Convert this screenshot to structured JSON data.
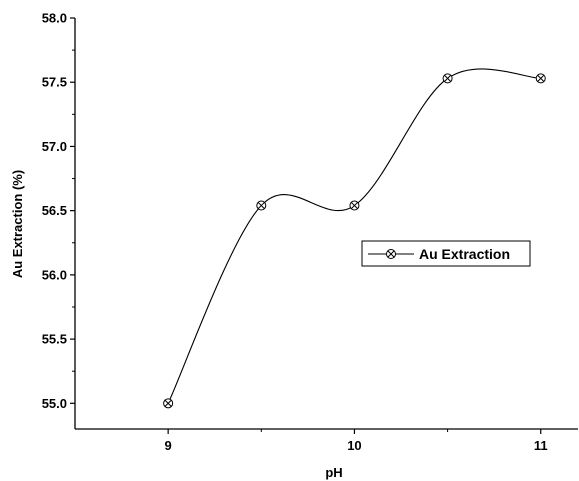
{
  "chart_data": {
    "type": "line",
    "xlabel": "pH",
    "ylabel": "Au Extraction (%)",
    "xlim": [
      8.5,
      11.2
    ],
    "ylim": [
      54.8,
      58.0
    ],
    "x_ticks": [
      9,
      10,
      11
    ],
    "x_tick_labels": [
      "9",
      "10",
      "11"
    ],
    "y_ticks": [
      55.0,
      55.5,
      56.0,
      56.5,
      57.0,
      57.5,
      58.0
    ],
    "y_tick_labels": [
      "55.0",
      "55.5",
      "56.0",
      "56.5",
      "57.0",
      "57.5",
      "58.0"
    ],
    "series": [
      {
        "name": "Au Extraction",
        "x": [
          9,
          9.5,
          10,
          10.5,
          11
        ],
        "y": [
          55.0,
          56.54,
          56.54,
          57.53,
          57.53
        ],
        "color": "#000000",
        "marker": "circle-x",
        "smooth": true
      }
    ],
    "legend": {
      "position": "right",
      "show": true
    },
    "grid": false
  }
}
